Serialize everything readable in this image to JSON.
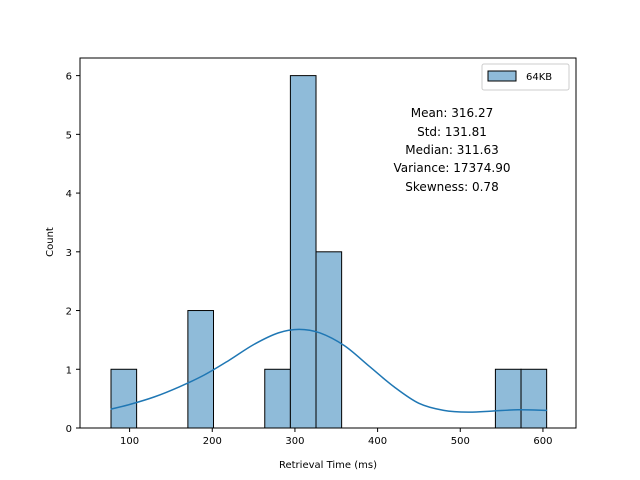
{
  "chart_data": {
    "type": "bar",
    "subtype": "histogram",
    "xlabel": "Retrieval Time (ms)",
    "ylabel": "Count",
    "xlim": [
      40,
      640
    ],
    "ylim": [
      0,
      6.3
    ],
    "xticks": [
      100,
      200,
      300,
      400,
      500,
      600
    ],
    "yticks": [
      0,
      1,
      2,
      3,
      4,
      5,
      6
    ],
    "grid": false,
    "legend": {
      "position": "top-right",
      "entries": [
        "64KB"
      ]
    },
    "colors": {
      "bar_fill": "#8fbbd9",
      "bar_edge": "#000000",
      "kde_line": "#1f77b4"
    },
    "series": [
      {
        "name": "64KB",
        "bins": [
          {
            "x0": 77.5,
            "x1": 108.5,
            "count": 1
          },
          {
            "x0": 108.5,
            "x1": 139.5,
            "count": 0
          },
          {
            "x0": 139.5,
            "x1": 170.5,
            "count": 0
          },
          {
            "x0": 170.5,
            "x1": 201.5,
            "count": 2
          },
          {
            "x0": 201.5,
            "x1": 232.5,
            "count": 0
          },
          {
            "x0": 232.5,
            "x1": 263.5,
            "count": 0
          },
          {
            "x0": 263.5,
            "x1": 294.5,
            "count": 1
          },
          {
            "x0": 294.5,
            "x1": 325.5,
            "count": 6
          },
          {
            "x0": 325.5,
            "x1": 356.5,
            "count": 3
          },
          {
            "x0": 356.5,
            "x1": 387.5,
            "count": 0
          },
          {
            "x0": 387.5,
            "x1": 418.5,
            "count": 0
          },
          {
            "x0": 418.5,
            "x1": 449.5,
            "count": 0
          },
          {
            "x0": 449.5,
            "x1": 480.5,
            "count": 0
          },
          {
            "x0": 480.5,
            "x1": 511.5,
            "count": 0
          },
          {
            "x0": 511.5,
            "x1": 542.5,
            "count": 0
          },
          {
            "x0": 542.5,
            "x1": 573.5,
            "count": 1
          },
          {
            "x0": 573.5,
            "x1": 604.5,
            "count": 1
          }
        ],
        "kde": {
          "x": [
            77,
            100,
            130,
            160,
            190,
            220,
            250,
            280,
            305,
            330,
            360,
            390,
            420,
            450,
            480,
            510,
            540,
            570,
            605
          ],
          "y": [
            0.32,
            0.4,
            0.53,
            0.7,
            0.9,
            1.15,
            1.42,
            1.62,
            1.68,
            1.62,
            1.4,
            1.05,
            0.7,
            0.42,
            0.3,
            0.27,
            0.29,
            0.31,
            0.3
          ]
        }
      }
    ],
    "annotations": [
      "Mean: 316.27",
      "Std: 131.81",
      "Median: 311.63",
      "Variance: 17374.90",
      "Skewness: 0.78"
    ]
  }
}
